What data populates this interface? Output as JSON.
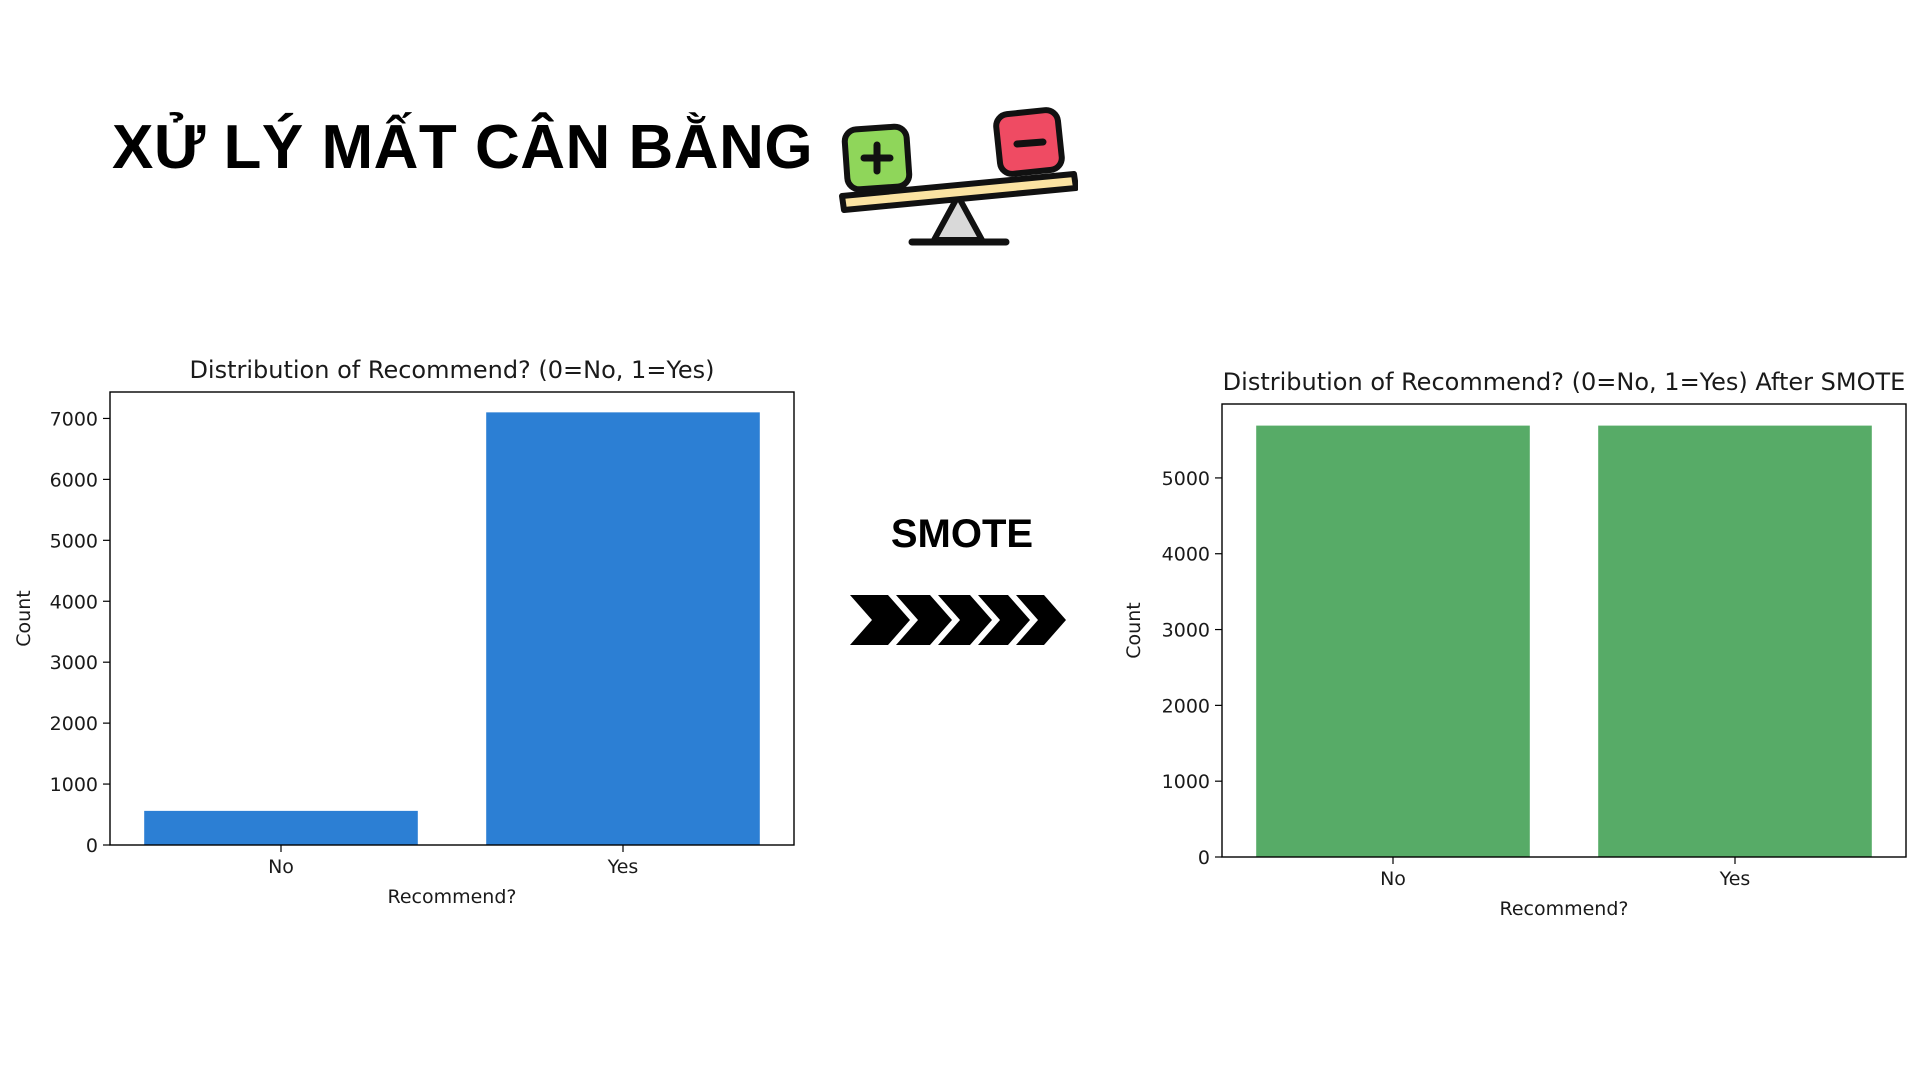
{
  "header": {
    "title": "XỬ LÝ MẤT CÂN BẰNG",
    "icon": "seesaw-balance-icon"
  },
  "transition": {
    "label": "SMOTE",
    "icon": "chevrons-right-icon"
  },
  "colors": {
    "before_bar": "#2c7fd4",
    "after_bar": "#57ab67",
    "plus_box": "#8fd65a",
    "minus_box": "#ef4b63",
    "plank": "#fbe3a2"
  },
  "chart_data": [
    {
      "type": "bar",
      "title": "Distribution of Recommend? (0=No, 1=Yes)",
      "xlabel": "Recommend?",
      "ylabel": "Count",
      "categories": [
        "No",
        "Yes"
      ],
      "values": [
        560,
        7100
      ],
      "ylim": [
        0,
        7434
      ],
      "yticks": [
        0,
        1000,
        2000,
        3000,
        4000,
        5000,
        6000,
        7000
      ],
      "grid": false
    },
    {
      "type": "bar",
      "title": "Distribution of Recommend? (0=No, 1=Yes) After SMOTE",
      "xlabel": "Recommend?",
      "ylabel": "Count",
      "categories": [
        "No",
        "Yes"
      ],
      "values": [
        5690,
        5690
      ],
      "ylim": [
        0,
        5975
      ],
      "yticks": [
        0,
        1000,
        2000,
        3000,
        4000,
        5000
      ],
      "grid": false
    }
  ]
}
